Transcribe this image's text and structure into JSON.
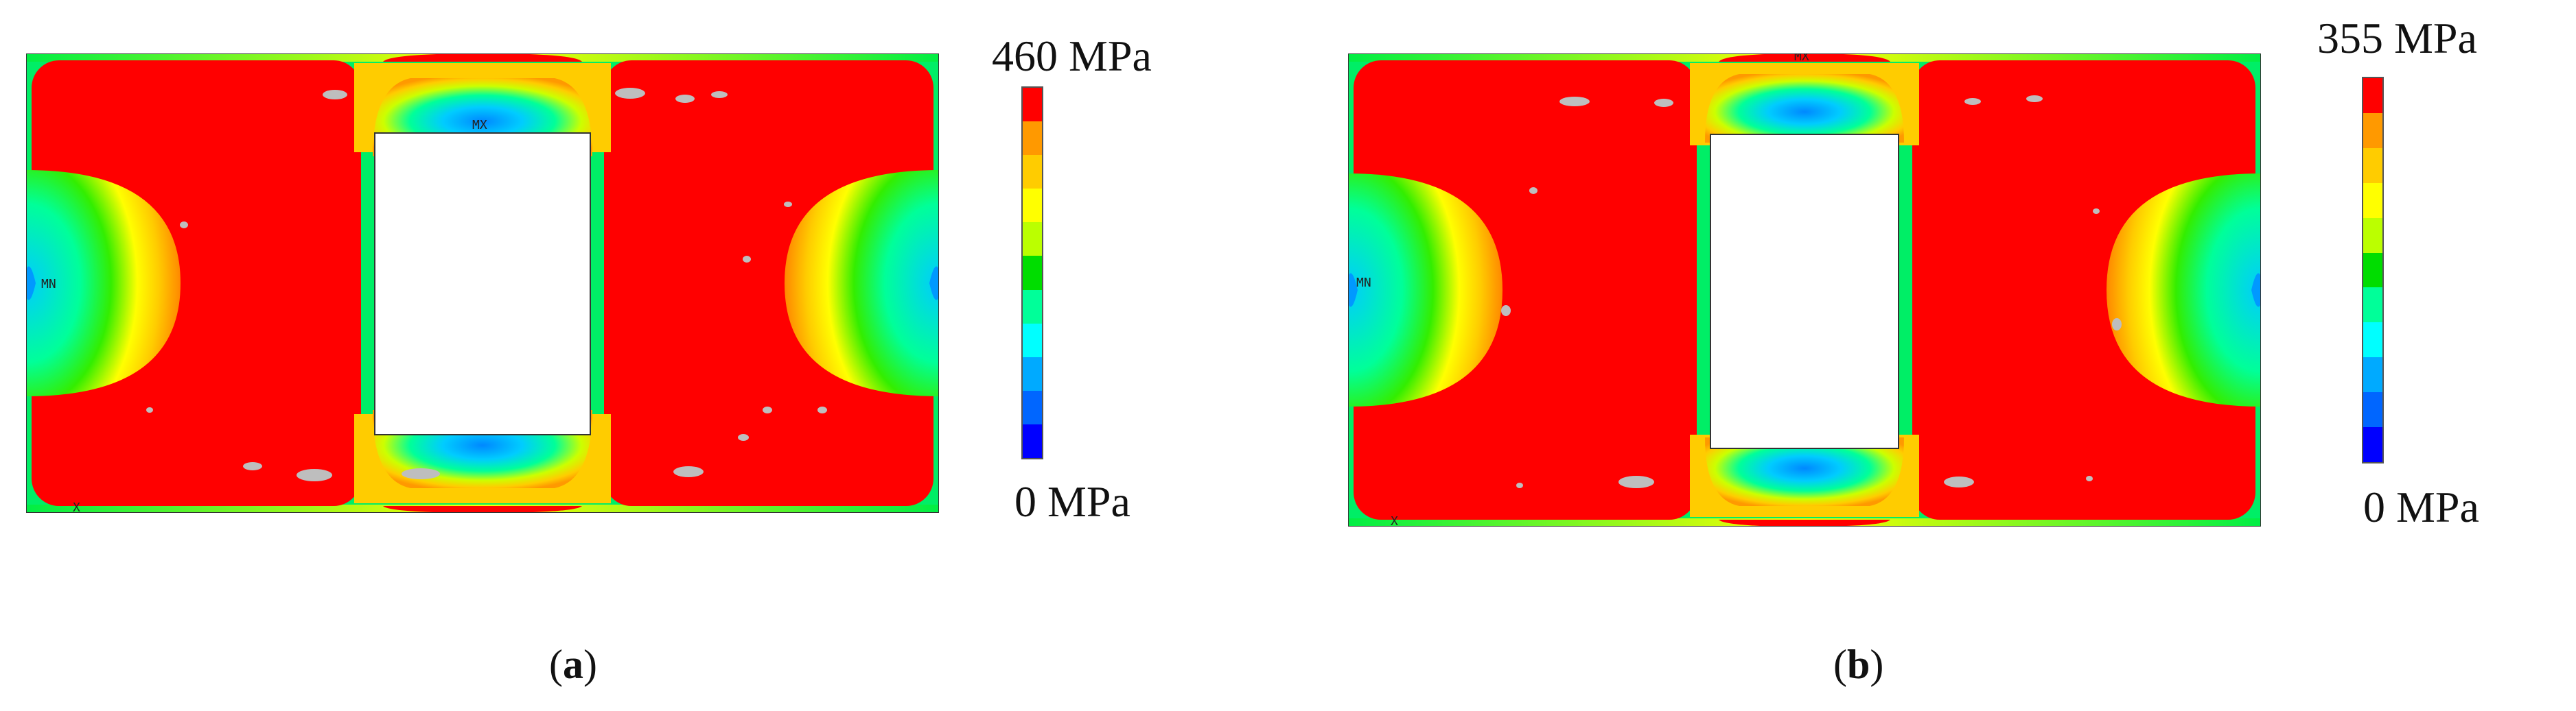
{
  "figures": [
    {
      "id": "a",
      "caption": {
        "open": "(",
        "letter": "a",
        "close": ")"
      },
      "legend": {
        "max_label": "460 MPa",
        "min_label": "0 MPa"
      },
      "node_labels": {
        "mx": "MX",
        "mn": "MN",
        "origin": "X"
      }
    },
    {
      "id": "b",
      "caption": {
        "open": "(",
        "letter": "b",
        "close": ")"
      },
      "legend": {
        "max_label": "355 MPa",
        "min_label": "0 MPa"
      },
      "node_labels": {
        "mx": "MX",
        "mn": "MN",
        "origin": "X"
      }
    }
  ],
  "colormap": [
    "#ff0000",
    "#ff9900",
    "#ffcc00",
    "#ffff00",
    "#bbff00",
    "#00dd00",
    "#00ff99",
    "#00ffff",
    "#00aaff",
    "#0066ff",
    "#0000ff"
  ],
  "colors": {
    "hole": "#ffffff",
    "low_spots": "#bebebe",
    "outline": "#333333"
  }
}
